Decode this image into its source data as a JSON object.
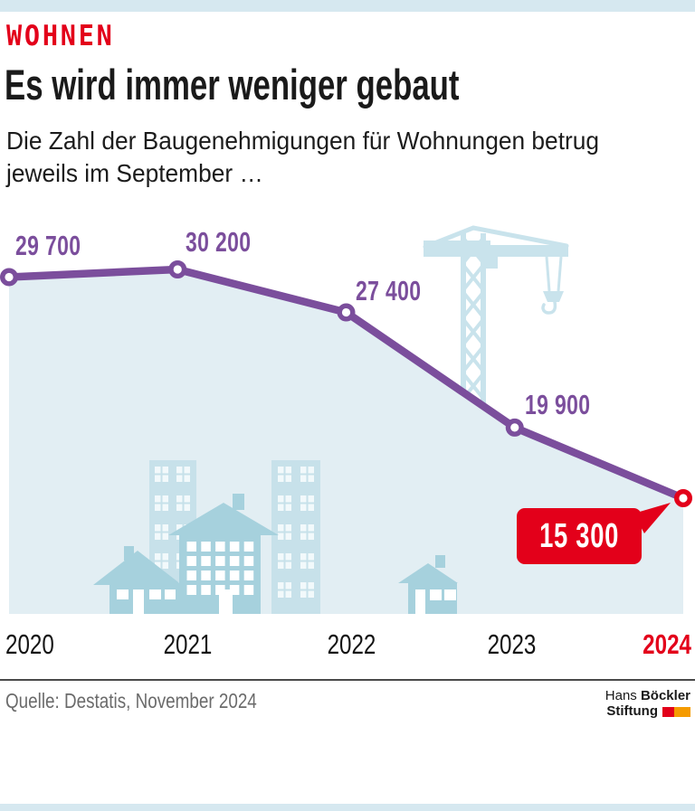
{
  "header": {
    "kicker": "WOHNEN",
    "title": "Es wird immer weniger gebaut",
    "subtitle_line1": "Die Zahl der Baugenehmigungen für Wohnungen betrug",
    "subtitle_line2": "jeweils im September …"
  },
  "chart_data": {
    "type": "line",
    "title": "Es wird immer weniger gebaut",
    "subtitle": "Die Zahl der Baugenehmigungen für Wohnungen betrug jeweils im September …",
    "categories": [
      "2020",
      "2021",
      "2022",
      "2023",
      "2024"
    ],
    "values": [
      29700,
      30200,
      27400,
      19900,
      15300
    ],
    "point_labels": [
      "29 700",
      "30 200",
      "27 400",
      "19 900",
      "15 300"
    ],
    "highlight": {
      "category": "2024",
      "value": 15300,
      "label": "15 300"
    },
    "ylim": [
      7500,
      33000
    ],
    "grid": false,
    "legend": "none",
    "line_color": "#7b4e9c",
    "highlight_color": "#e3001a",
    "area_color": "#e2eef3",
    "decorations": [
      "construction-crane",
      "apartment-towers",
      "houses"
    ]
  },
  "footer": {
    "source": "Quelle: Destatis, November 2024",
    "logo_line1_regular": "Hans",
    "logo_line1_bold": "Böckler",
    "logo_line2_bold": "Stiftung"
  },
  "colors": {
    "accent_red": "#e3001a",
    "logo_orange": "#f59b00",
    "line_purple": "#7b4e9c",
    "area_blue": "#e2eef3",
    "illustration_blue": "#c7e1ea",
    "house_blue": "#a6d1dd",
    "band_blue": "#d6e8f0"
  }
}
